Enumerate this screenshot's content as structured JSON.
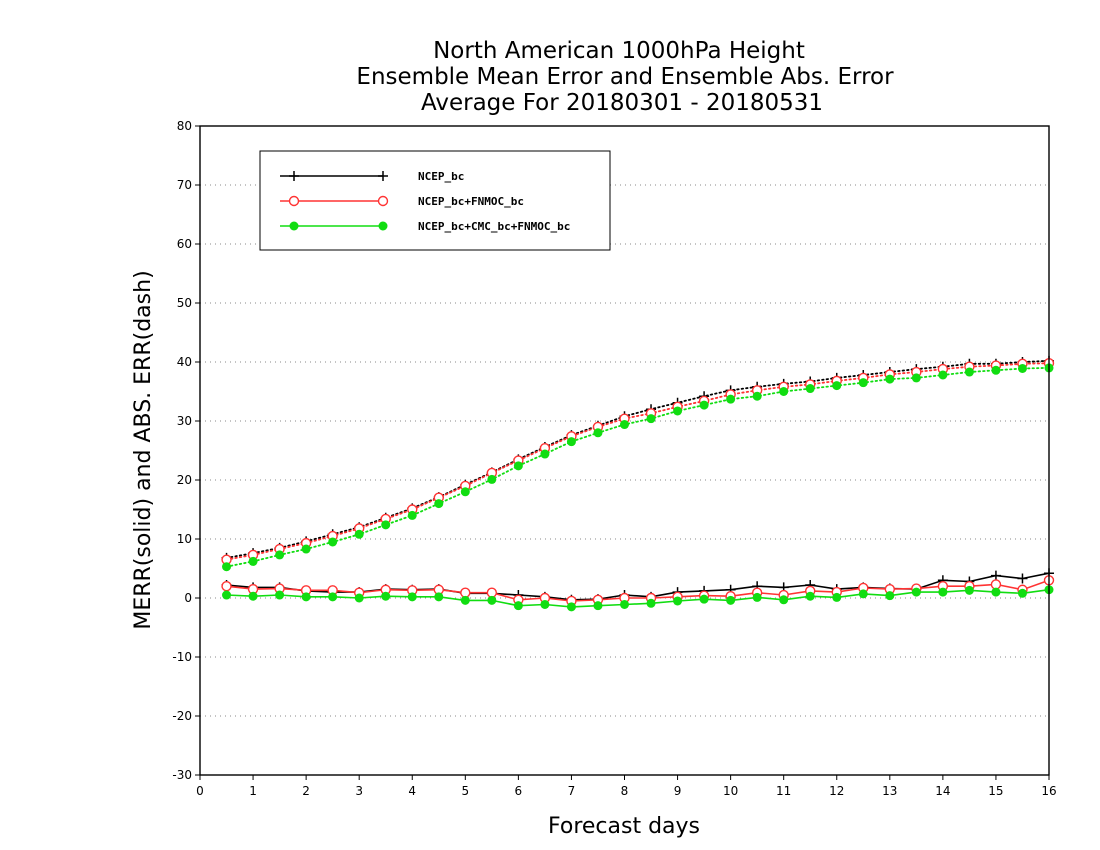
{
  "chart_data": {
    "type": "line",
    "title_lines": [
      "North American 1000hPa Height",
      "Ensemble Mean Error and Ensemble Abs. Error",
      "Average For 20180301 - 20180531"
    ],
    "xlabel": "Forecast days",
    "ylabel": "MERR(solid) and ABS. ERR(dash)",
    "xlim": [
      0,
      16
    ],
    "ylim": [
      -30,
      80
    ],
    "xticks": [
      0,
      1,
      2,
      3,
      4,
      5,
      6,
      7,
      8,
      9,
      10,
      11,
      12,
      13,
      14,
      15,
      16
    ],
    "yticks": [
      -30,
      -20,
      -10,
      0,
      10,
      20,
      30,
      40,
      50,
      60,
      70,
      80
    ],
    "grid": "horizontal dotted",
    "legend_position": "top-left",
    "x": [
      0.5,
      1,
      1.5,
      2,
      2.5,
      3,
      3.5,
      4,
      4.5,
      5,
      5.5,
      6,
      6.5,
      7,
      7.5,
      8,
      8.5,
      9,
      9.5,
      10,
      10.5,
      11,
      11.5,
      12,
      12.5,
      13,
      13.5,
      14,
      14.5,
      15,
      15.5,
      16
    ],
    "series": [
      {
        "name": "NCEP_bc",
        "color": "#000000",
        "marker": "plus",
        "merr": [
          2.2,
          1.8,
          1.8,
          1.2,
          1.0,
          1.0,
          1.5,
          1.4,
          1.5,
          0.8,
          0.8,
          0.5,
          0.2,
          -0.3,
          -0.2,
          0.5,
          0.2,
          1.0,
          1.2,
          1.4,
          2.0,
          1.8,
          2.2,
          1.5,
          1.8,
          1.6,
          1.5,
          3.0,
          2.8,
          3.8,
          3.3,
          4.2
        ],
        "abs_err": [
          6.8,
          7.6,
          8.5,
          9.6,
          10.8,
          12.0,
          13.6,
          15.2,
          17.1,
          19.2,
          21.3,
          23.5,
          25.6,
          27.6,
          29.2,
          30.8,
          32.0,
          33.1,
          34.2,
          35.2,
          35.8,
          36.3,
          36.7,
          37.3,
          37.8,
          38.3,
          38.8,
          39.2,
          39.7,
          39.7,
          40.0,
          40.2
        ]
      },
      {
        "name": "NCEP_bc+FNMOC_bc",
        "color": "#ff3333",
        "marker": "open-circle",
        "merr": [
          2.0,
          1.5,
          1.6,
          1.3,
          1.3,
          0.9,
          1.4,
          1.3,
          1.4,
          0.9,
          0.9,
          -0.3,
          0.0,
          -0.5,
          -0.3,
          0.0,
          0.0,
          0.2,
          0.4,
          0.3,
          0.9,
          0.5,
          1.2,
          1.0,
          1.7,
          1.5,
          1.6,
          2.0,
          2.0,
          2.3,
          1.4,
          3.0
        ],
        "abs_err": [
          6.5,
          7.3,
          8.3,
          9.3,
          10.5,
          11.8,
          13.4,
          15.0,
          17.0,
          19.0,
          21.2,
          23.3,
          25.4,
          27.4,
          29.0,
          30.4,
          31.3,
          32.4,
          33.4,
          34.5,
          35.2,
          35.8,
          36.2,
          36.8,
          37.3,
          37.9,
          38.3,
          38.8,
          39.2,
          39.4,
          39.7,
          39.8
        ]
      },
      {
        "name": "NCEP_bc+CMC_bc+FNMOC_bc",
        "color": "#11dd11",
        "marker": "filled-circle",
        "merr": [
          0.5,
          0.3,
          0.5,
          0.2,
          0.2,
          0.0,
          0.3,
          0.2,
          0.2,
          -0.4,
          -0.4,
          -1.3,
          -1.1,
          -1.5,
          -1.3,
          -1.1,
          -0.9,
          -0.5,
          -0.2,
          -0.4,
          0.1,
          -0.3,
          0.3,
          0.1,
          0.7,
          0.4,
          1.0,
          1.0,
          1.3,
          1.0,
          0.8,
          1.4
        ],
        "abs_err": [
          5.3,
          6.2,
          7.3,
          8.3,
          9.5,
          10.8,
          12.4,
          14.0,
          16.0,
          18.0,
          20.1,
          22.4,
          24.4,
          26.5,
          28.0,
          29.4,
          30.4,
          31.7,
          32.7,
          33.7,
          34.2,
          35.0,
          35.5,
          36.0,
          36.5,
          37.1,
          37.3,
          37.8,
          38.3,
          38.6,
          38.9,
          39.0
        ]
      }
    ]
  }
}
